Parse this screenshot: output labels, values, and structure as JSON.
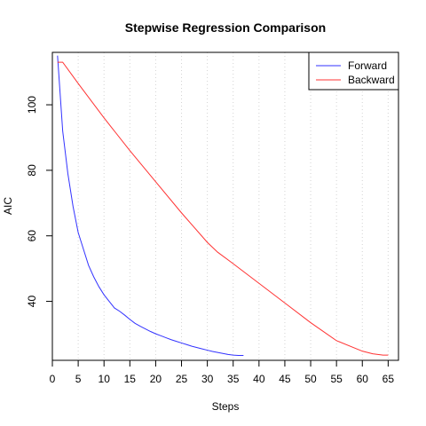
{
  "chart_data": {
    "type": "line",
    "title": "Stepwise Regression Comparison",
    "xlabel": "Steps",
    "ylabel": "AIC",
    "xlim": [
      0,
      67
    ],
    "ylim": [
      22,
      116
    ],
    "x_ticks": [
      0,
      5,
      10,
      15,
      20,
      25,
      30,
      35,
      40,
      45,
      50,
      55,
      60,
      65
    ],
    "y_ticks": [
      40,
      60,
      80,
      100
    ],
    "grid": "vertical dotted lines at x ticks",
    "legend_position": "top-right",
    "series": [
      {
        "name": "Forward",
        "color": "#3333ff",
        "x": [
          1,
          2,
          3,
          4,
          5,
          6,
          7,
          8,
          9,
          10,
          11,
          12,
          13,
          14,
          15,
          16,
          17,
          18,
          19,
          20,
          21,
          22,
          23,
          24,
          25,
          26,
          27,
          28,
          29,
          30,
          31,
          32,
          33,
          34,
          35,
          36,
          37
        ],
        "values": [
          115,
          92,
          79,
          69,
          61,
          56,
          51,
          47.5,
          44.5,
          42,
          40,
          38,
          37,
          35.8,
          34.5,
          33.3,
          32.4,
          31.6,
          30.8,
          30.1,
          29.5,
          28.9,
          28.3,
          27.8,
          27.3,
          26.8,
          26.3,
          25.9,
          25.5,
          25.1,
          24.7,
          24.4,
          24.1,
          23.8,
          23.6,
          23.5,
          23.5
        ]
      },
      {
        "name": "Backward",
        "color": "#ff3333",
        "x": [
          1,
          2,
          5,
          10,
          15,
          20,
          25,
          30,
          32,
          35,
          40,
          45,
          50,
          55,
          60,
          62,
          64,
          65
        ],
        "values": [
          113,
          113,
          106.5,
          96,
          86,
          76.5,
          67,
          58,
          55,
          51.5,
          45.5,
          39.5,
          33.5,
          28,
          24.8,
          24,
          23.6,
          23.6
        ]
      }
    ]
  }
}
